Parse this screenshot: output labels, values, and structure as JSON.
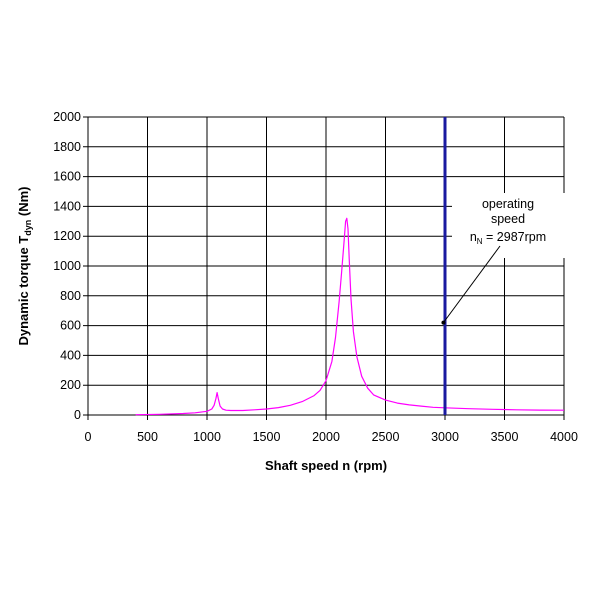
{
  "chart_data": {
    "type": "line",
    "xlabel": "Shaft speed n (rpm)",
    "ylabel_main": "Dynamic torque T",
    "ylabel_sub": "dyn",
    "ylabel_unit": " (Nm)",
    "xlim": [
      0,
      4000
    ],
    "ylim": [
      0,
      2000
    ],
    "xticks": [
      0,
      500,
      1000,
      1500,
      2000,
      2500,
      3000,
      3500,
      4000
    ],
    "yticks": [
      0,
      200,
      400,
      600,
      800,
      1000,
      1200,
      1400,
      1600,
      1800,
      2000
    ],
    "grid": true,
    "series": [
      {
        "color": "#ff00ff",
        "x": [
          400,
          600,
          800,
          900,
          1000,
          1040,
          1060,
          1075,
          1085,
          1095,
          1110,
          1130,
          1160,
          1200,
          1300,
          1400,
          1500,
          1600,
          1700,
          1800,
          1900,
          1950,
          2000,
          2050,
          2080,
          2110,
          2130,
          2150,
          2165,
          2175,
          2185,
          2195,
          2210,
          2230,
          2260,
          2300,
          2350,
          2400,
          2500,
          2600,
          2700,
          2800,
          2900,
          3000,
          3200,
          3400,
          3600,
          3800,
          4000
        ],
        "values": [
          2,
          5,
          10,
          15,
          25,
          40,
          65,
          110,
          150,
          110,
          60,
          40,
          32,
          30,
          30,
          35,
          40,
          50,
          65,
          90,
          130,
          165,
          230,
          360,
          520,
          760,
          950,
          1150,
          1300,
          1320,
          1250,
          1050,
          780,
          560,
          390,
          260,
          180,
          135,
          100,
          80,
          68,
          60,
          52,
          48,
          42,
          38,
          35,
          33,
          32
        ]
      }
    ],
    "vline": {
      "x": 3000,
      "color": "#1a1aa0"
    },
    "annotation": {
      "lines": [
        "operating",
        "speed"
      ],
      "n_main": "n",
      "n_sub": "N",
      "n_rest": " = 2987rpm",
      "point": {
        "x": 2987,
        "y": 620
      }
    }
  }
}
